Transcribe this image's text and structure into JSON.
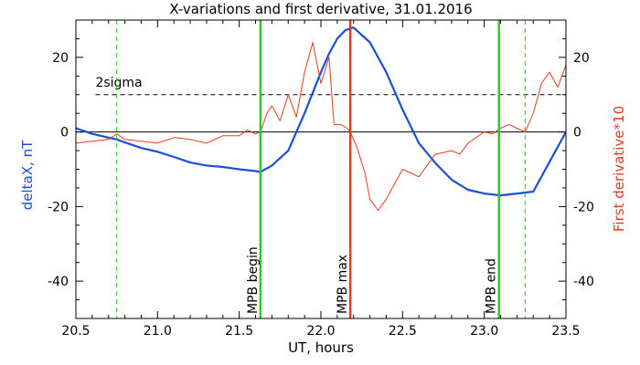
{
  "chart_data": {
    "type": "line",
    "title": "X-variations and first derivative, 31.01.2016",
    "xlabel": "UT, hours",
    "ylabel_left": "deltaX, nT",
    "ylabel_right": "First derivative*10",
    "xlim": [
      20.5,
      23.5
    ],
    "ylim": [
      -50,
      30
    ],
    "x_ticks": [
      "20.5",
      "21.0",
      "21.5",
      "22.0",
      "22.5",
      "23.0",
      "23.5"
    ],
    "y_ticks_left": [
      "-40",
      "-20",
      "0",
      "20"
    ],
    "y_ticks_right": [
      "-40",
      "-20",
      "0",
      "20"
    ],
    "threshold": {
      "label": "2sigma",
      "value": 10,
      "style": "dashed"
    },
    "zero_line": 0,
    "colors": {
      "deltaX": "#1a4fd8",
      "derivative": "#e03c1e",
      "mpb_begin_end": "#22cc22",
      "mpb_max": "#e03c1e",
      "axes": "#000000"
    },
    "markers": [
      {
        "label": "MPB begin",
        "x": 21.63,
        "style": "solid",
        "color": "#22cc22"
      },
      {
        "label": "MPB max",
        "x": 22.18,
        "style": "solid",
        "color": "#e03c1e"
      },
      {
        "label": "MPB end",
        "x": 23.09,
        "style": "solid",
        "color": "#22cc22"
      },
      {
        "label": "",
        "x": 20.75,
        "style": "dashed",
        "color": "#22cc22"
      },
      {
        "label": "",
        "x": 23.25,
        "style": "dashed",
        "color": "#22cc22"
      }
    ],
    "series": [
      {
        "name": "deltaX",
        "axis": "left",
        "color": "#1a4fd8",
        "x": [
          20.5,
          20.6,
          20.7,
          20.75,
          20.8,
          20.9,
          21.0,
          21.1,
          21.2,
          21.3,
          21.4,
          21.5,
          21.6,
          21.63,
          21.7,
          21.8,
          21.9,
          22.0,
          22.05,
          22.1,
          22.15,
          22.2,
          22.3,
          22.4,
          22.5,
          22.6,
          22.7,
          22.8,
          22.9,
          23.0,
          23.1,
          23.2,
          23.3,
          23.4,
          23.5
        ],
        "y": [
          1,
          -0.5,
          -1.5,
          -2,
          -2.8,
          -4.3,
          -5.3,
          -6.7,
          -8.2,
          -9.0,
          -9.4,
          -10,
          -10.5,
          -10.7,
          -9,
          -5,
          5,
          16,
          21,
          25,
          27.3,
          28,
          24,
          16,
          6,
          -3,
          -8.3,
          -12.8,
          -15.5,
          -16.5,
          -17,
          -16.5,
          -16,
          -8,
          0
        ]
      },
      {
        "name": "First derivative*10",
        "axis": "right",
        "color": "#e03c1e",
        "x": [
          20.5,
          20.6,
          20.7,
          20.75,
          20.8,
          20.9,
          21.0,
          21.1,
          21.2,
          21.3,
          21.4,
          21.5,
          21.55,
          21.6,
          21.63,
          21.67,
          21.7,
          21.75,
          21.8,
          21.85,
          21.9,
          21.95,
          22.0,
          22.05,
          22.08,
          22.12,
          22.16,
          22.18,
          22.22,
          22.27,
          22.3,
          22.35,
          22.4,
          22.5,
          22.6,
          22.7,
          22.8,
          22.85,
          22.9,
          22.95,
          23.0,
          23.05,
          23.1,
          23.15,
          23.2,
          23.25,
          23.3,
          23.35,
          23.4,
          23.45,
          23.5
        ],
        "y": [
          -3,
          -2.5,
          -2,
          -0.5,
          -2,
          -2.5,
          -3,
          -1.5,
          -2,
          -3,
          -1,
          -1,
          0.5,
          -0.5,
          0,
          5,
          7,
          3,
          10,
          4,
          16,
          24,
          13,
          20,
          2,
          2,
          1,
          0,
          -4,
          -11,
          -18,
          -21,
          -18,
          -10,
          -12,
          -6,
          -5,
          -6,
          -3,
          -1.5,
          0,
          -0.5,
          1,
          2,
          1,
          0,
          5,
          13,
          16,
          12,
          18
        ]
      }
    ]
  }
}
